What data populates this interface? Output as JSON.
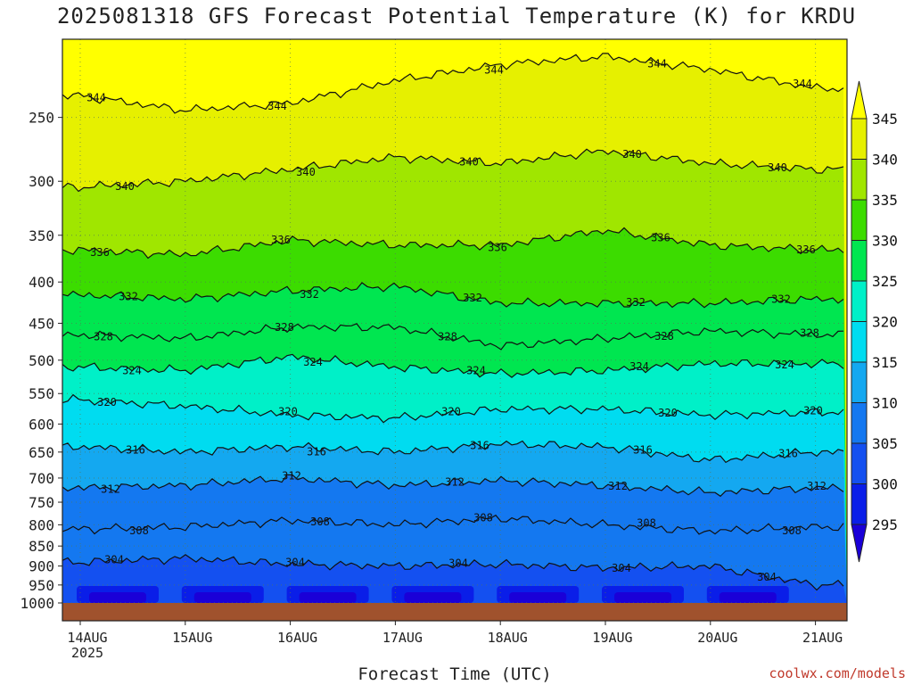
{
  "chart_data": {
    "type": "heatmap",
    "title": "2025081318 GFS Forecast Potential Temperature (K) for KRDU",
    "xlabel": "Forecast Time (UTC)",
    "credit": "coolwx.com/models",
    "y_axis": {
      "quantity": "pressure (hPa)",
      "ticks": [
        250,
        300,
        350,
        400,
        450,
        500,
        550,
        600,
        650,
        700,
        750,
        800,
        850,
        900,
        950,
        1000
      ],
      "ylim": [
        1000,
        200
      ],
      "scale": "log",
      "grid": true
    },
    "x_axis": {
      "ticks": [
        "14AUG",
        "15AUG",
        "16AUG",
        "17AUG",
        "18AUG",
        "19AUG",
        "20AUG",
        "21AUG"
      ],
      "first_tick_year": "2025",
      "grid": true
    },
    "colorbar": {
      "levels": [
        295,
        300,
        305,
        310,
        315,
        320,
        325,
        330,
        335,
        340,
        345
      ],
      "colors": [
        "#1a00d8",
        "#0a1ee8",
        "#1450f0",
        "#1478f0",
        "#14a8f0",
        "#00dcf0",
        "#00f0c8",
        "#00e650",
        "#3cdc00",
        "#a0e600",
        "#e6f000",
        "#ffff00"
      ],
      "extend": "both"
    },
    "isentropes": [
      {
        "theta": 304,
        "p": [
          890,
          880,
          895,
          900,
          895,
          905,
          900,
          950
        ],
        "labeled_at": [
          "14AUG",
          "17AUG",
          "19AUG",
          "20AUG"
        ]
      },
      {
        "theta": 308,
        "p": [
          810,
          805,
          790,
          800,
          785,
          800,
          815,
          805
        ]
      },
      {
        "theta": 312,
        "p": [
          720,
          715,
          700,
          715,
          705,
          715,
          730,
          720
        ]
      },
      {
        "theta": 316,
        "p": [
          640,
          650,
          640,
          650,
          635,
          640,
          665,
          650
        ]
      },
      {
        "theta": 320,
        "p": [
          560,
          570,
          585,
          590,
          575,
          575,
          585,
          580
        ]
      },
      {
        "theta": 324,
        "p": [
          510,
          515,
          495,
          510,
          520,
          515,
          505,
          505
        ]
      },
      {
        "theta": 328,
        "p": [
          465,
          470,
          455,
          455,
          480,
          470,
          460,
          465
        ]
      },
      {
        "theta": 332,
        "p": [
          415,
          420,
          410,
          405,
          425,
          425,
          425,
          420
        ]
      },
      {
        "theta": 336,
        "p": [
          365,
          370,
          355,
          360,
          360,
          345,
          360,
          365
        ]
      },
      {
        "theta": 340,
        "p": [
          305,
          300,
          290,
          280,
          285,
          275,
          285,
          290
        ]
      },
      {
        "theta": 344,
        "p": [
          235,
          245,
          240,
          225,
          215,
          210,
          218,
          230
        ]
      }
    ]
  }
}
